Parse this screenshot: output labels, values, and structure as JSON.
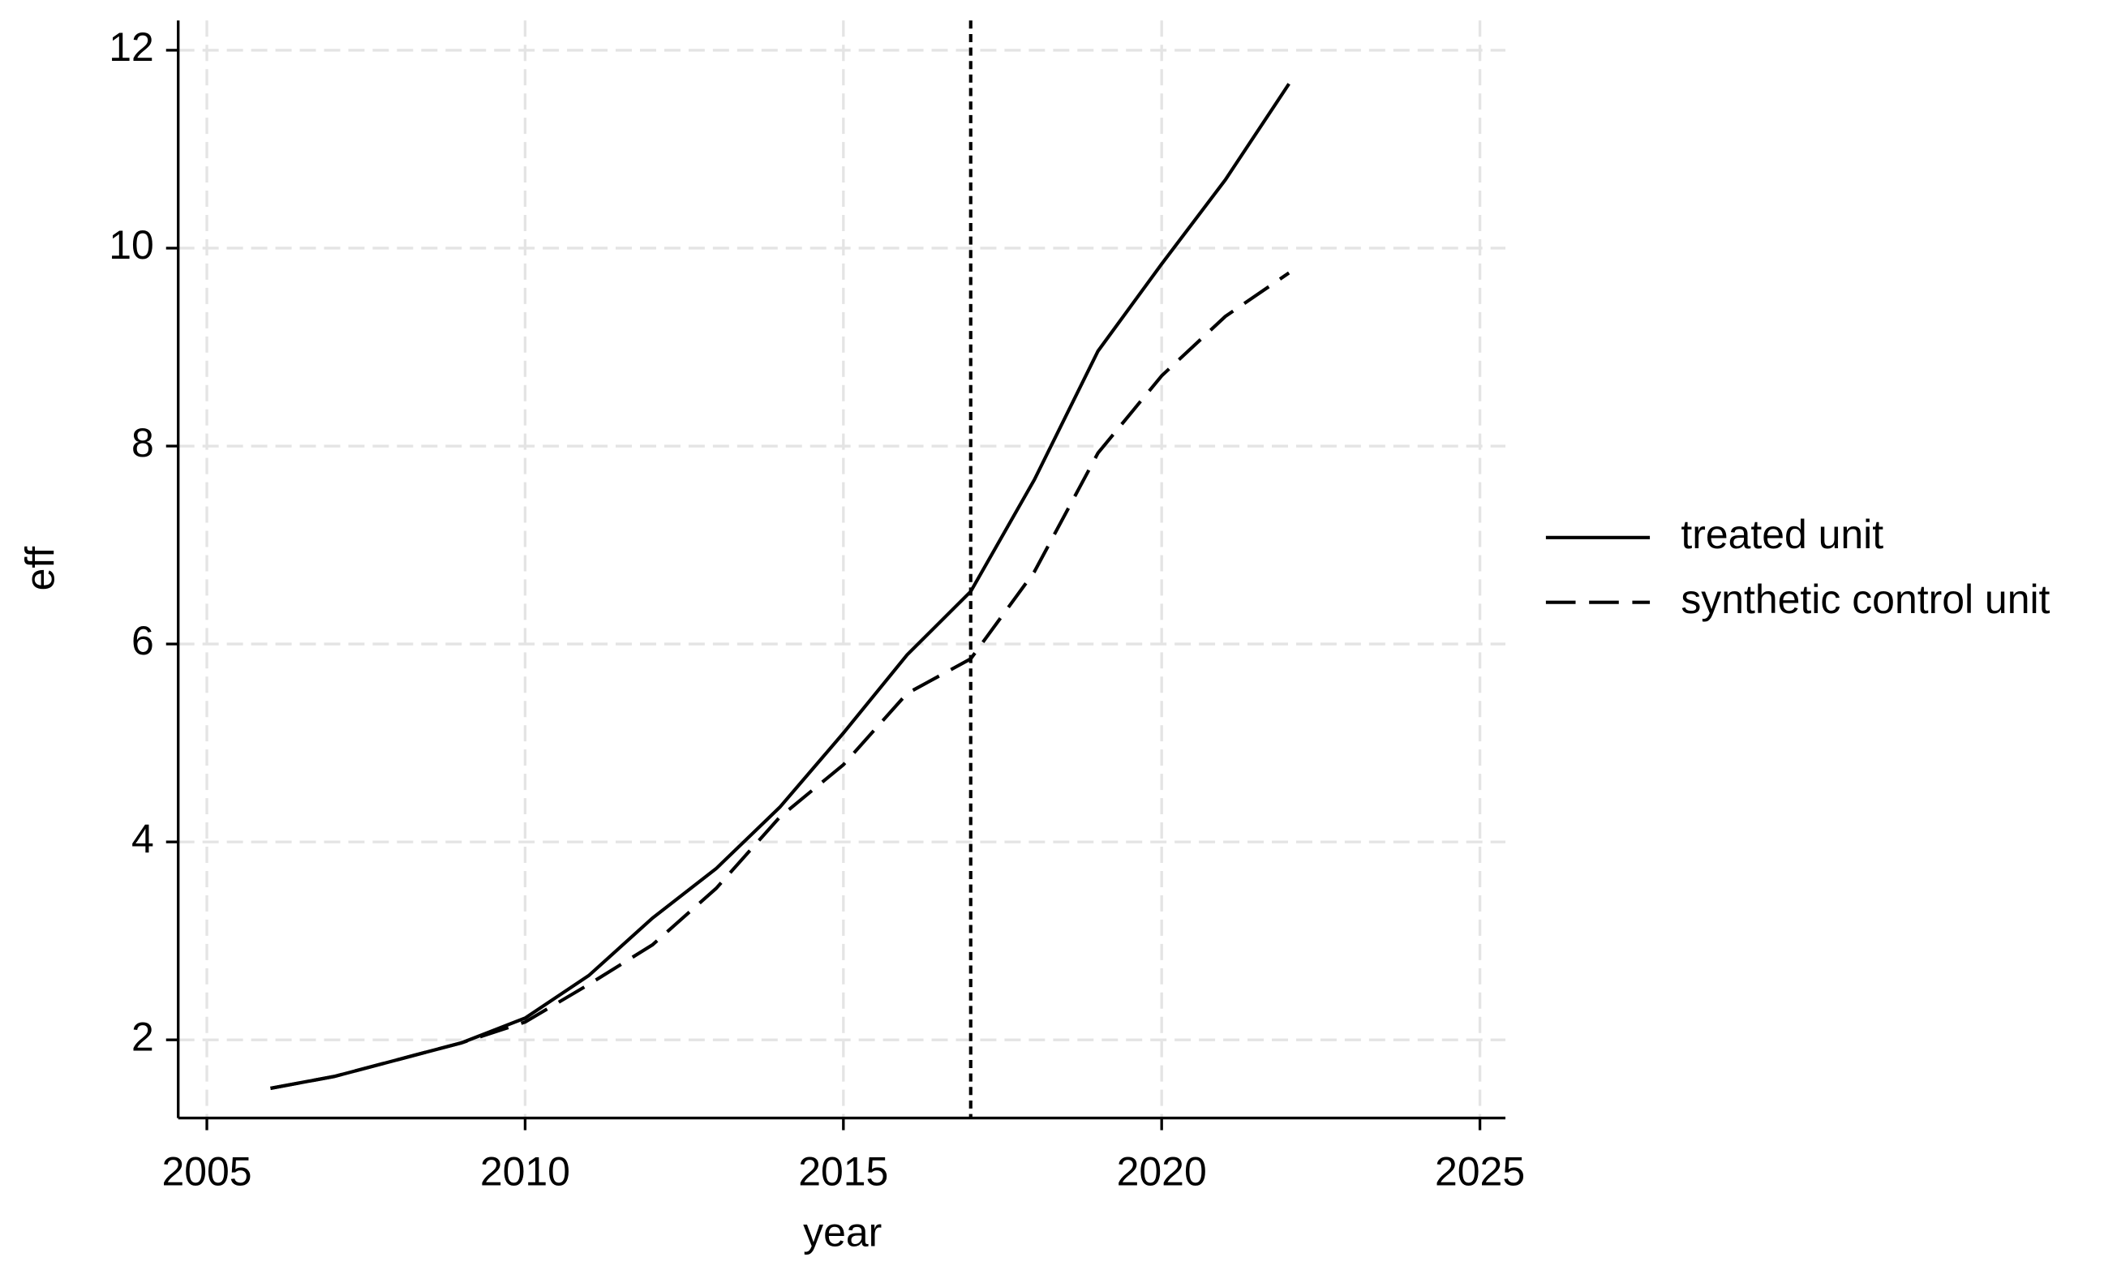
{
  "chart_data": {
    "type": "line",
    "x_label": "year",
    "y_label": "eff",
    "x": [
      2006,
      2007,
      2008,
      2009,
      2010,
      2011,
      2012,
      2013,
      2014,
      2015,
      2016,
      2017,
      2018,
      2019,
      2020,
      2021,
      2022
    ],
    "series": [
      {
        "name": "treated unit",
        "color": "#000000",
        "style": "solid",
        "values": [
          1.51,
          1.63,
          1.8,
          1.97,
          2.22,
          2.65,
          3.23,
          3.73,
          4.35,
          5.1,
          5.89,
          6.53,
          7.66,
          8.96,
          9.84,
          10.69,
          11.66
        ]
      },
      {
        "name": "synthetic control unit",
        "color": "#000000",
        "style": "dashed",
        "values": [
          1.51,
          1.63,
          1.8,
          1.97,
          2.18,
          2.56,
          2.96,
          3.53,
          4.25,
          4.78,
          5.5,
          5.85,
          6.73,
          7.93,
          8.71,
          9.31,
          9.75
        ]
      }
    ],
    "xlim": [
      2004.55,
      2025.4
    ],
    "ylim": [
      1.21,
      12.3
    ],
    "xticks": [
      2005,
      2010,
      2015,
      2020,
      2025
    ],
    "yticks": [
      2,
      4,
      6,
      8,
      10,
      12
    ],
    "grid": true,
    "reference_line_x": 2017,
    "legend": "right"
  }
}
